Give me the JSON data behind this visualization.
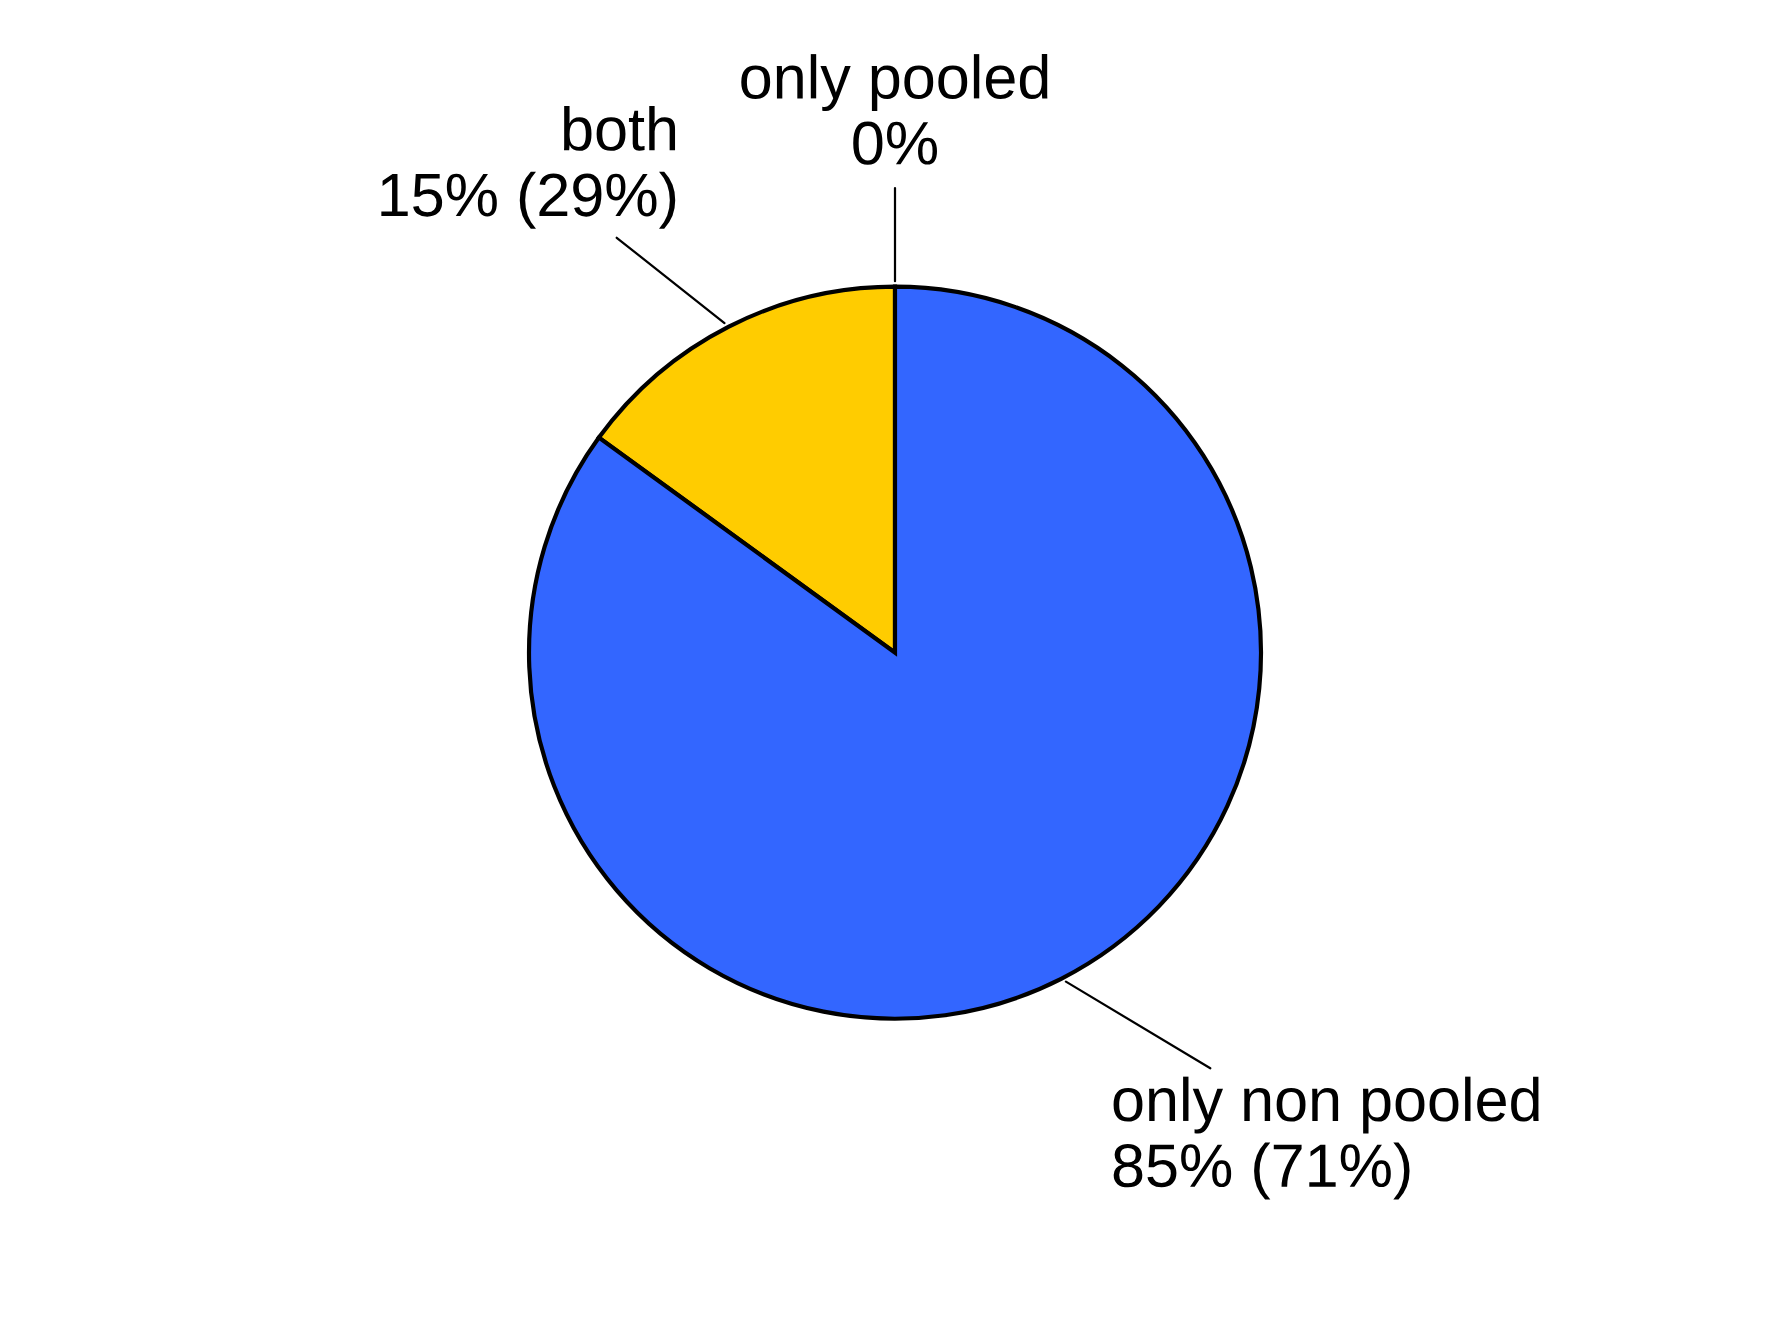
{
  "chart_data": {
    "type": "pie",
    "categories": [
      "only pooled",
      "both",
      "only non pooled"
    ],
    "values": [
      0,
      15,
      85
    ],
    "value_labels": [
      "0%",
      "15% (29%)",
      "85% (71%)"
    ],
    "colors": [
      "#ffffff",
      "#ffcc00",
      "#3366ff"
    ]
  }
}
